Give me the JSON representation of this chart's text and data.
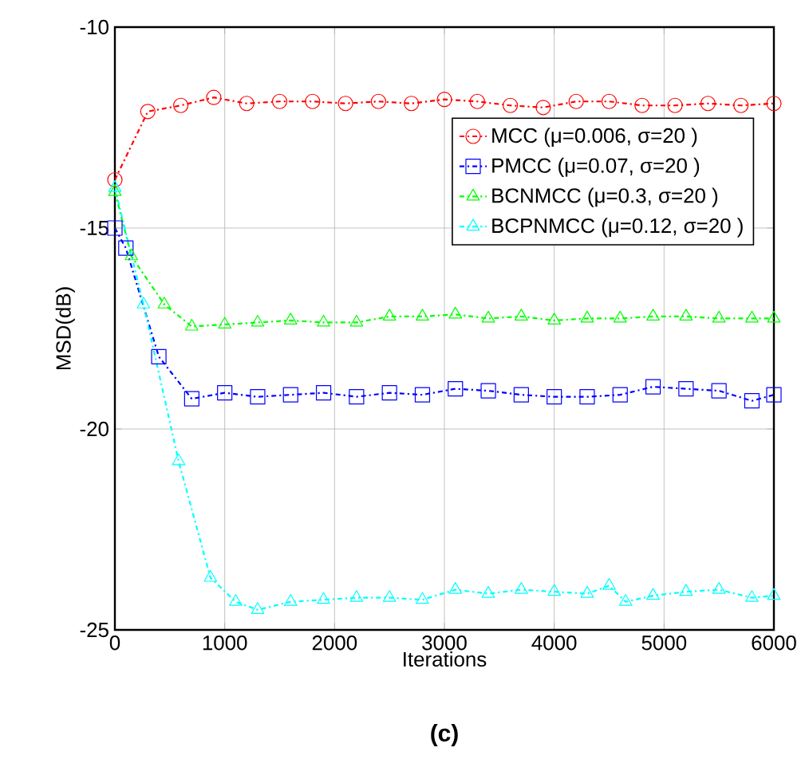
{
  "chart_data": {
    "type": "line",
    "xlabel": "Iterations",
    "ylabel": "MSD(dB)",
    "annotations": [
      "(c)"
    ],
    "xlim": [
      0,
      6000
    ],
    "ylim": [
      -25,
      -10
    ],
    "xticks": [
      0,
      1000,
      2000,
      3000,
      4000,
      5000,
      6000
    ],
    "yticks": [
      -25,
      -20,
      -15,
      -10
    ],
    "grid": true,
    "legend": "top right",
    "line_style": "dashed",
    "series": [
      {
        "name": "MCC (μ=0.006, σ=20 )",
        "color": "#ff0000",
        "marker": "circle",
        "x": [
          0,
          300,
          600,
          900,
          1200,
          1500,
          1800,
          2100,
          2400,
          2700,
          3000,
          3300,
          3600,
          3900,
          4200,
          4500,
          4800,
          5100,
          5400,
          5700,
          6000
        ],
        "values": [
          -13.8,
          -12.1,
          -11.95,
          -11.75,
          -11.9,
          -11.85,
          -11.85,
          -11.9,
          -11.85,
          -11.9,
          -11.8,
          -11.85,
          -11.95,
          -12.0,
          -11.85,
          -11.85,
          -11.95,
          -11.95,
          -11.9,
          -11.95,
          -11.9
        ]
      },
      {
        "name": "PMCC (μ=0.07, σ=20 )",
        "color": "#0000ff",
        "marker": "square",
        "x": [
          0,
          100,
          400,
          700,
          1000,
          1300,
          1600,
          1900,
          2200,
          2500,
          2800,
          3100,
          3400,
          3700,
          4000,
          4300,
          4600,
          4900,
          5200,
          5500,
          5800,
          6000
        ],
        "values": [
          -15.0,
          -15.5,
          -18.2,
          -19.25,
          -19.1,
          -19.2,
          -19.15,
          -19.1,
          -19.2,
          -19.1,
          -19.15,
          -19.0,
          -19.05,
          -19.15,
          -19.2,
          -19.2,
          -19.15,
          -18.95,
          -19.0,
          -19.05,
          -19.3,
          -19.15
        ]
      },
      {
        "name": "BCNMCC (μ=0.3, σ=20 )",
        "color": "#00ff00",
        "marker": "triangle",
        "x": [
          0,
          150,
          450,
          700,
          1000,
          1300,
          1600,
          1900,
          2200,
          2500,
          2800,
          3100,
          3400,
          3700,
          4000,
          4300,
          4600,
          4900,
          5200,
          5500,
          5800,
          6000
        ],
        "values": [
          -14.1,
          -15.7,
          -16.9,
          -17.45,
          -17.4,
          -17.35,
          -17.3,
          -17.35,
          -17.35,
          -17.2,
          -17.2,
          -17.15,
          -17.25,
          -17.2,
          -17.3,
          -17.25,
          -17.25,
          -17.2,
          -17.2,
          -17.25,
          -17.25,
          -17.25
        ]
      },
      {
        "name": "BCPNMCC (μ=0.12, σ=20 )",
        "color": "#00ffff",
        "marker": "triangle-right",
        "x": [
          0,
          260,
          580,
          870,
          1100,
          1300,
          1600,
          1900,
          2200,
          2500,
          2800,
          3100,
          3400,
          3700,
          4000,
          4300,
          4500,
          4650,
          4900,
          5200,
          5500,
          5800,
          6000
        ],
        "values": [
          -14.0,
          -16.9,
          -20.8,
          -23.7,
          -24.3,
          -24.5,
          -24.3,
          -24.25,
          -24.2,
          -24.2,
          -24.25,
          -24.0,
          -24.1,
          -24.0,
          -24.05,
          -24.1,
          -23.9,
          -24.3,
          -24.15,
          -24.05,
          -24.0,
          -24.2,
          -24.15
        ]
      }
    ]
  }
}
